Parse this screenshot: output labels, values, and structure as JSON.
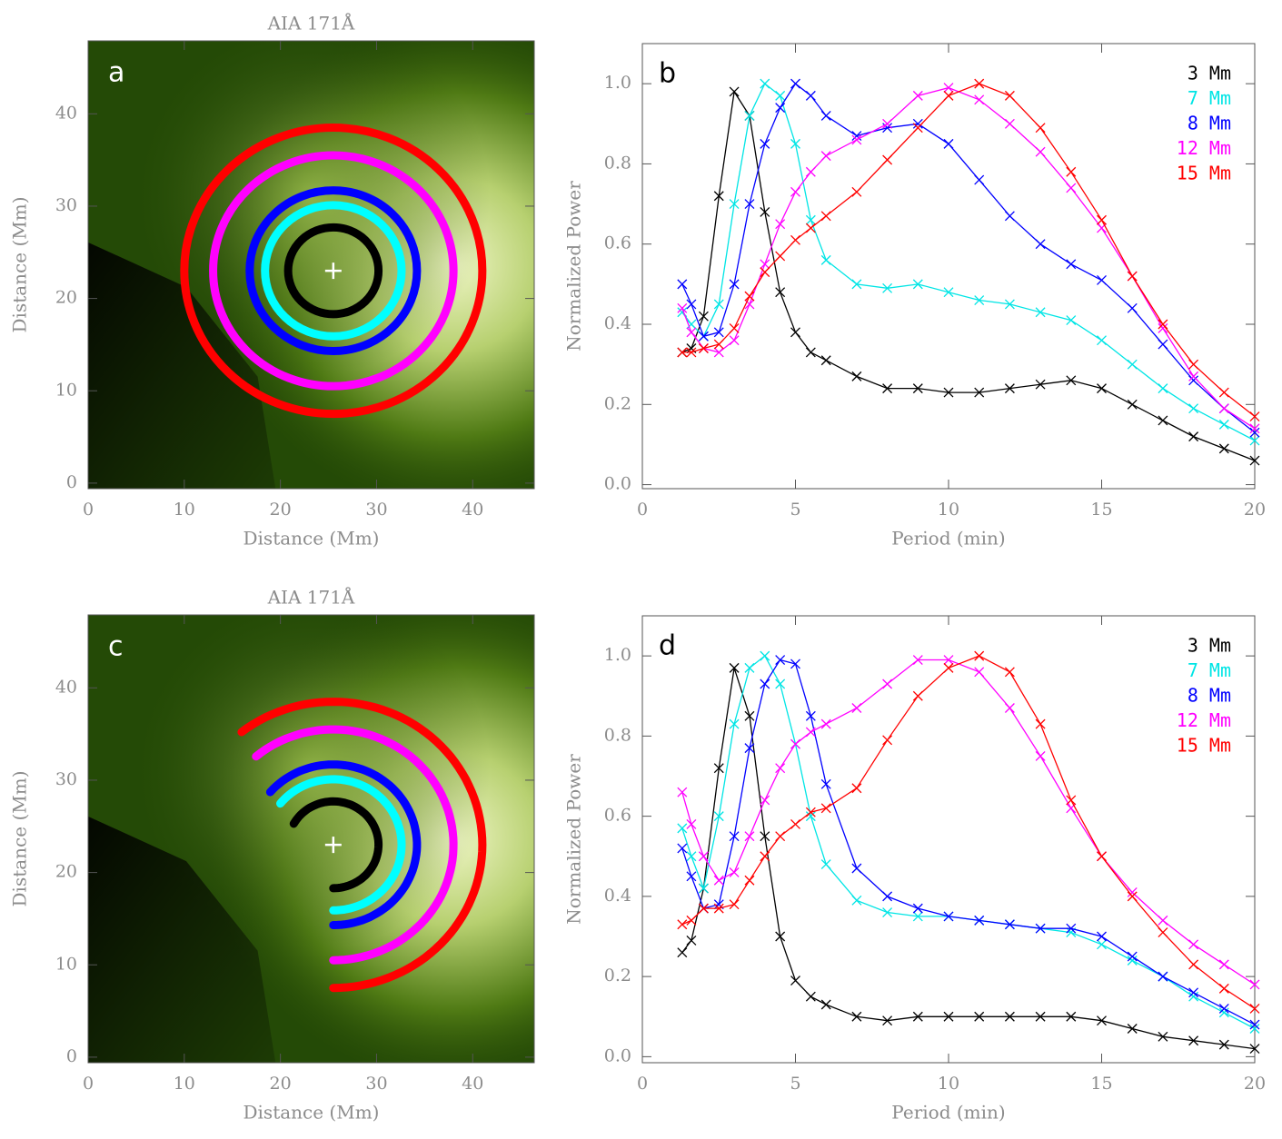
{
  "chart_data": [
    {
      "type": "image",
      "title": "AIA 171Å",
      "label": "a",
      "xlabel": "Distance (Mm)",
      "ylabel": "Distance (Mm)",
      "xlim": [
        0,
        46.4
      ],
      "ylim": [
        -0.6,
        47.9
      ],
      "xticks": [
        0,
        10,
        20,
        30,
        40
      ],
      "yticks": [
        0,
        10,
        20,
        30,
        40
      ],
      "center": [
        25.5,
        23
      ],
      "rings": [
        {
          "color": "#ff0000",
          "radius": 15.5
        },
        {
          "color": "#ff00ff",
          "radius": 12.5
        },
        {
          "color": "#0000ff",
          "radius": 8.7
        },
        {
          "color": "#00ffff",
          "radius": 7.1
        },
        {
          "color": "#000000",
          "radius": 4.7
        }
      ]
    },
    {
      "type": "line",
      "label": "b",
      "xlabel": "Period (min)",
      "ylabel": "Normalized Power",
      "xlim": [
        0,
        20
      ],
      "ylim": [
        -0.01,
        1.1
      ],
      "xticks": [
        0,
        5,
        10,
        15,
        20
      ],
      "yticks": [
        {
          "value": 0,
          "label": "0.0"
        },
        {
          "value": 0.2,
          "label": "0.2"
        },
        {
          "value": 0.4,
          "label": "0.4"
        },
        {
          "value": 0.6,
          "label": "0.6"
        },
        {
          "value": 0.8,
          "label": "0.8"
        },
        {
          "value": 1,
          "label": "1.0"
        }
      ],
      "x": [
        1.3,
        1.6,
        2,
        2.5,
        3,
        3.5,
        4,
        4.5,
        5,
        5.5,
        6,
        7,
        8,
        9,
        10,
        11,
        12,
        13,
        14,
        15,
        16,
        17,
        18,
        19,
        20
      ],
      "series": [
        {
          "name": "3 Mm",
          "color": "#000000",
          "values": [
            0.33,
            0.34,
            0.42,
            0.72,
            0.98,
            0.92,
            0.68,
            0.48,
            0.38,
            0.33,
            0.31,
            0.27,
            0.24,
            0.24,
            0.23,
            0.23,
            0.24,
            0.25,
            0.26,
            0.24,
            0.2,
            0.16,
            0.12,
            0.09,
            0.06
          ]
        },
        {
          "name": "7 Mm",
          "color": "#00e5e5",
          "values": [
            0.43,
            0.4,
            0.37,
            0.45,
            0.7,
            0.92,
            1.0,
            0.97,
            0.85,
            0.66,
            0.56,
            0.5,
            0.49,
            0.5,
            0.48,
            0.46,
            0.45,
            0.43,
            0.41,
            0.36,
            0.3,
            0.24,
            0.19,
            0.15,
            0.11
          ]
        },
        {
          "name": "8 Mm",
          "color": "#0000ff",
          "values": [
            0.5,
            0.45,
            0.37,
            0.38,
            0.5,
            0.7,
            0.85,
            0.94,
            1.0,
            0.97,
            0.92,
            0.87,
            0.89,
            0.9,
            0.85,
            0.76,
            0.67,
            0.6,
            0.55,
            0.51,
            0.44,
            0.35,
            0.26,
            0.19,
            0.13
          ]
        },
        {
          "name": "12 Mm",
          "color": "#ff00ff",
          "values": [
            0.44,
            0.38,
            0.34,
            0.33,
            0.36,
            0.45,
            0.55,
            0.65,
            0.73,
            0.78,
            0.82,
            0.86,
            0.9,
            0.97,
            0.99,
            0.96,
            0.9,
            0.83,
            0.74,
            0.64,
            0.52,
            0.39,
            0.27,
            0.19,
            0.14
          ]
        },
        {
          "name": "15 Mm",
          "color": "#ff0000",
          "values": [
            0.33,
            0.33,
            0.34,
            0.35,
            0.39,
            0.47,
            0.53,
            0.57,
            0.61,
            0.64,
            0.67,
            0.73,
            0.81,
            0.89,
            0.97,
            1.0,
            0.97,
            0.89,
            0.78,
            0.66,
            0.52,
            0.4,
            0.3,
            0.23,
            0.17
          ]
        }
      ]
    },
    {
      "type": "image",
      "title": "AIA 171Å",
      "label": "c",
      "xlabel": "Distance (Mm)",
      "ylabel": "Distance (Mm)",
      "xlim": [
        0,
        46.4
      ],
      "ylim": [
        -0.6,
        47.9
      ],
      "xticks": [
        0,
        10,
        20,
        30,
        40
      ],
      "yticks": [
        0,
        10,
        20,
        30,
        40
      ],
      "center": [
        25.5,
        23
      ],
      "rings": [
        {
          "color": "#ff0000",
          "radius": 15.5,
          "arc": [
            -90,
            128
          ]
        },
        {
          "color": "#ff00ff",
          "radius": 12.5,
          "arc": [
            -90,
            130
          ]
        },
        {
          "color": "#0000ff",
          "radius": 8.7,
          "arc": [
            -90,
            139
          ]
        },
        {
          "color": "#00ffff",
          "radius": 7.1,
          "arc": [
            -90,
            141
          ]
        },
        {
          "color": "#000000",
          "radius": 4.7,
          "arc": [
            -90,
            151
          ]
        }
      ]
    },
    {
      "type": "line",
      "label": "d",
      "xlabel": "Period (min)",
      "ylabel": "Normalized Power",
      "xlim": [
        0,
        20
      ],
      "ylim": [
        -0.015,
        1.1
      ],
      "xticks": [
        0,
        5,
        10,
        15,
        20
      ],
      "yticks": [
        {
          "value": 0,
          "label": "0.0"
        },
        {
          "value": 0.2,
          "label": "0.2"
        },
        {
          "value": 0.4,
          "label": "0.4"
        },
        {
          "value": 0.6,
          "label": "0.6"
        },
        {
          "value": 0.8,
          "label": "0.8"
        },
        {
          "value": 1,
          "label": "1.0"
        }
      ],
      "x": [
        1.3,
        1.6,
        2,
        2.5,
        3,
        3.5,
        4,
        4.5,
        5,
        5.5,
        6,
        7,
        8,
        9,
        10,
        11,
        12,
        13,
        14,
        15,
        16,
        17,
        18,
        19,
        20
      ],
      "series": [
        {
          "name": "3 Mm",
          "color": "#000000",
          "values": [
            0.26,
            0.29,
            0.42,
            0.72,
            0.97,
            0.85,
            0.55,
            0.3,
            0.19,
            0.15,
            0.13,
            0.1,
            0.09,
            0.1,
            0.1,
            0.1,
            0.1,
            0.1,
            0.1,
            0.09,
            0.07,
            0.05,
            0.04,
            0.03,
            0.02
          ]
        },
        {
          "name": "7 Mm",
          "color": "#00e5e5",
          "values": [
            0.57,
            0.5,
            0.42,
            0.6,
            0.83,
            0.97,
            1.0,
            0.93,
            0.78,
            0.6,
            0.48,
            0.39,
            0.36,
            0.35,
            0.35,
            0.34,
            0.33,
            0.32,
            0.31,
            0.28,
            0.24,
            0.2,
            0.15,
            0.11,
            0.07
          ]
        },
        {
          "name": "8 Mm",
          "color": "#0000ff",
          "values": [
            0.52,
            0.45,
            0.37,
            0.38,
            0.55,
            0.77,
            0.93,
            0.99,
            0.98,
            0.85,
            0.68,
            0.47,
            0.4,
            0.37,
            0.35,
            0.34,
            0.33,
            0.32,
            0.32,
            0.3,
            0.25,
            0.2,
            0.16,
            0.12,
            0.08
          ]
        },
        {
          "name": "12 Mm",
          "color": "#ff00ff",
          "values": [
            0.66,
            0.58,
            0.5,
            0.44,
            0.46,
            0.55,
            0.64,
            0.72,
            0.78,
            0.81,
            0.83,
            0.87,
            0.93,
            0.99,
            0.99,
            0.96,
            0.87,
            0.75,
            0.62,
            0.5,
            0.41,
            0.34,
            0.28,
            0.23,
            0.18
          ]
        },
        {
          "name": "15 Mm",
          "color": "#ff0000",
          "values": [
            0.33,
            0.34,
            0.37,
            0.37,
            0.38,
            0.44,
            0.5,
            0.55,
            0.58,
            0.61,
            0.62,
            0.67,
            0.79,
            0.9,
            0.97,
            1.0,
            0.96,
            0.83,
            0.64,
            0.5,
            0.4,
            0.31,
            0.23,
            0.17,
            0.12
          ]
        }
      ]
    }
  ]
}
